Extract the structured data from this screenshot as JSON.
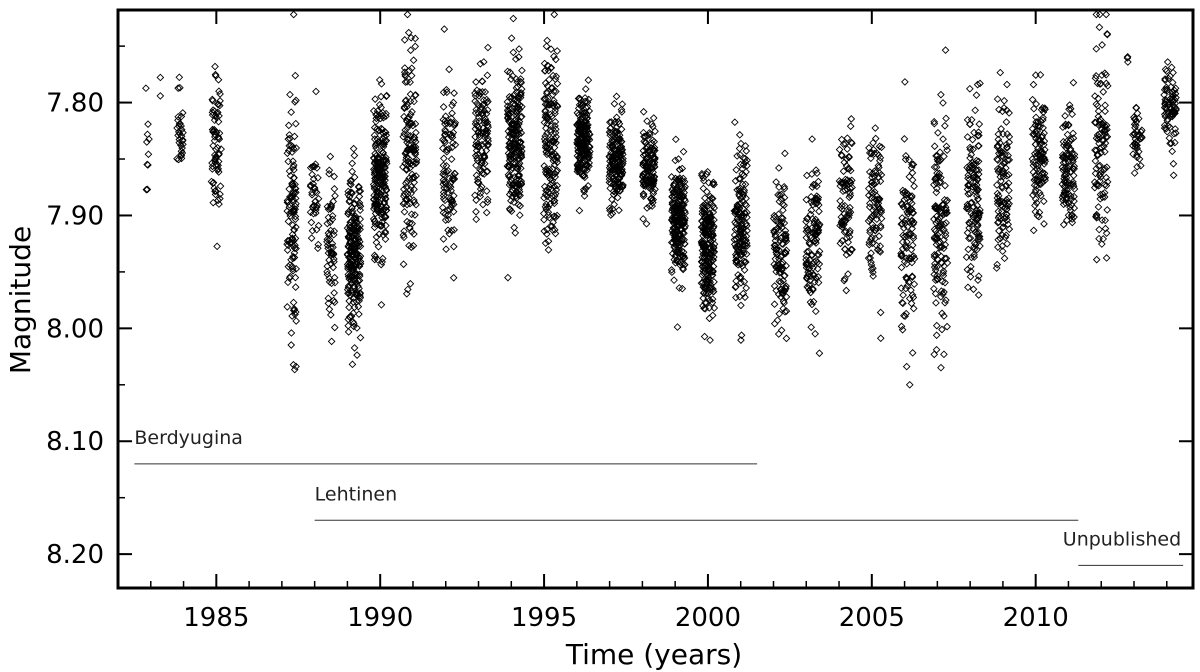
{
  "chart_data": {
    "type": "scatter",
    "title": "",
    "xlabel": "Time (years)",
    "ylabel": "Magnitude",
    "xlim": [
      1982.0,
      2014.8
    ],
    "ylim": [
      8.23,
      7.718
    ],
    "y_inverted": true,
    "grid": false,
    "legend": "none",
    "marker": "open-diamond",
    "color": "#000000",
    "xticks": [
      1985,
      1990,
      1995,
      2000,
      2005,
      2010
    ],
    "xtick_labels": [
      "1985",
      "1990",
      "1995",
      "2000",
      "2005",
      "2010"
    ],
    "yticks": [
      7.8,
      7.9,
      8.0,
      8.1,
      8.2
    ],
    "ytick_labels": [
      "7.80",
      "7.90",
      "8.00",
      "8.10",
      "8.20"
    ],
    "data_segments": [
      {
        "t": 1982.9,
        "mean": 7.848,
        "sd": 0.022,
        "n": 10,
        "w": 0.1
      },
      {
        "t": 1983.3,
        "mean": 7.79,
        "sd": 0.004,
        "n": 2,
        "w": 0.04
      },
      {
        "t": 1983.9,
        "mean": 7.828,
        "sd": 0.024,
        "n": 32,
        "w": 0.2
      },
      {
        "t": 1985.0,
        "mean": 7.838,
        "sd": 0.03,
        "n": 72,
        "w": 0.3
      },
      {
        "t": 1987.3,
        "mean": 7.905,
        "sd": 0.055,
        "n": 120,
        "w": 0.28
      },
      {
        "t": 1988.0,
        "mean": 7.895,
        "sd": 0.025,
        "n": 40,
        "w": 0.25
      },
      {
        "t": 1988.5,
        "mean": 7.922,
        "sd": 0.032,
        "n": 60,
        "w": 0.26
      },
      {
        "t": 1989.2,
        "mean": 7.935,
        "sd": 0.035,
        "n": 220,
        "w": 0.4
      },
      {
        "t": 1990.0,
        "mean": 7.868,
        "sd": 0.035,
        "n": 220,
        "w": 0.4
      },
      {
        "t": 1990.9,
        "mean": 7.845,
        "sd": 0.04,
        "n": 140,
        "w": 0.42
      },
      {
        "t": 1992.1,
        "mean": 7.855,
        "sd": 0.04,
        "n": 100,
        "w": 0.4
      },
      {
        "t": 1993.1,
        "mean": 7.83,
        "sd": 0.03,
        "n": 120,
        "w": 0.42
      },
      {
        "t": 1994.1,
        "mean": 7.835,
        "sd": 0.035,
        "n": 220,
        "w": 0.45
      },
      {
        "t": 1995.2,
        "mean": 7.84,
        "sd": 0.045,
        "n": 170,
        "w": 0.42
      },
      {
        "t": 1996.2,
        "mean": 7.838,
        "sd": 0.018,
        "n": 190,
        "w": 0.4
      },
      {
        "t": 1997.2,
        "mean": 7.848,
        "sd": 0.02,
        "n": 170,
        "w": 0.42
      },
      {
        "t": 1998.2,
        "mean": 7.86,
        "sd": 0.018,
        "n": 130,
        "w": 0.38
      },
      {
        "t": 1999.1,
        "mean": 7.905,
        "sd": 0.025,
        "n": 220,
        "w": 0.42
      },
      {
        "t": 2000.0,
        "mean": 7.925,
        "sd": 0.03,
        "n": 230,
        "w": 0.4
      },
      {
        "t": 2001.0,
        "mean": 7.91,
        "sd": 0.035,
        "n": 160,
        "w": 0.4
      },
      {
        "t": 2002.2,
        "mean": 7.932,
        "sd": 0.03,
        "n": 120,
        "w": 0.4
      },
      {
        "t": 2003.2,
        "mean": 7.925,
        "sd": 0.035,
        "n": 120,
        "w": 0.42
      },
      {
        "t": 2004.2,
        "mean": 7.89,
        "sd": 0.035,
        "n": 90,
        "w": 0.4
      },
      {
        "t": 2005.1,
        "mean": 7.895,
        "sd": 0.035,
        "n": 100,
        "w": 0.4
      },
      {
        "t": 2006.1,
        "mean": 7.91,
        "sd": 0.04,
        "n": 110,
        "w": 0.42
      },
      {
        "t": 2007.1,
        "mean": 7.905,
        "sd": 0.05,
        "n": 140,
        "w": 0.42
      },
      {
        "t": 2008.1,
        "mean": 7.885,
        "sd": 0.04,
        "n": 130,
        "w": 0.42
      },
      {
        "t": 2009.0,
        "mean": 7.87,
        "sd": 0.035,
        "n": 110,
        "w": 0.4
      },
      {
        "t": 2010.1,
        "mean": 7.845,
        "sd": 0.03,
        "n": 110,
        "w": 0.4
      },
      {
        "t": 2011.0,
        "mean": 7.86,
        "sd": 0.025,
        "n": 110,
        "w": 0.38
      },
      {
        "t": 2012.0,
        "mean": 7.83,
        "sd": 0.045,
        "n": 110,
        "w": 0.4
      },
      {
        "t": 2012.8,
        "mean": 7.762,
        "sd": 0.003,
        "n": 3,
        "w": 0.05
      },
      {
        "t": 2013.1,
        "mean": 7.832,
        "sd": 0.015,
        "n": 40,
        "w": 0.3
      },
      {
        "t": 2014.1,
        "mean": 7.805,
        "sd": 0.02,
        "n": 80,
        "w": 0.38
      }
    ],
    "annotations": [
      {
        "text": "Berdyugina",
        "x_start": 1982.5,
        "x_end": 2001.5,
        "y": 8.12
      },
      {
        "text": "Lehtinen",
        "x_start": 1988.0,
        "x_end": 2011.3,
        "y": 8.17
      },
      {
        "text": "Unpublished",
        "x_start": 2011.3,
        "x_end": 2014.5,
        "y": 8.21
      }
    ]
  }
}
